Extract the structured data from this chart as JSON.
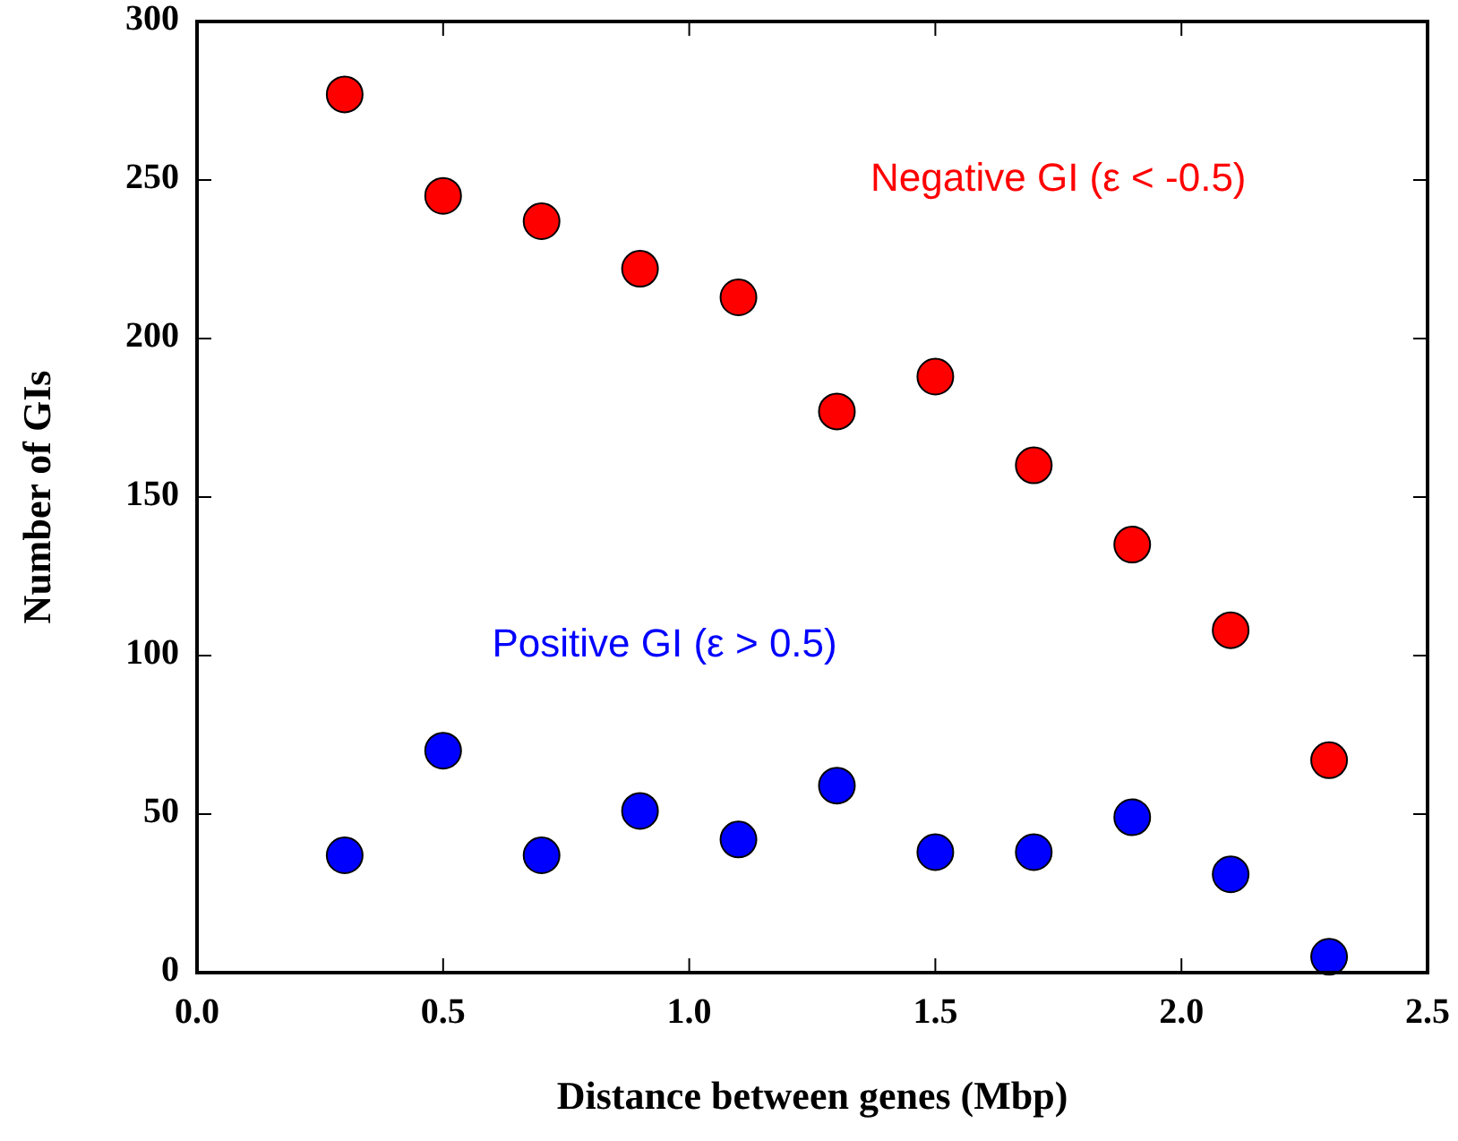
{
  "chart_data": {
    "type": "scatter",
    "xlabel": "Distance between genes (Mbp)",
    "ylabel": "Number of GIs",
    "x": [
      0.3,
      0.5,
      0.7,
      0.9,
      1.1,
      1.3,
      1.5,
      1.7,
      1.9,
      2.1,
      2.3
    ],
    "series": [
      {
        "name": "Negative GI (ε < -0.5)",
        "color": "#ff0000",
        "values": [
          277,
          245,
          237,
          222,
          213,
          177,
          188,
          160,
          135,
          108,
          67
        ]
      },
      {
        "name": "Positive GI (ε > 0.5)",
        "color": "#0000ff",
        "values": [
          37,
          70,
          37,
          51,
          42,
          59,
          38,
          38,
          49,
          31,
          5
        ]
      }
    ],
    "xlim": [
      0,
      2.5
    ],
    "xticks": [
      {
        "value": 0,
        "label": "0.0"
      },
      0.5,
      {
        "value": 1,
        "label": "1.0"
      },
      1.5,
      {
        "value": 2,
        "label": "2.0"
      },
      2.5
    ],
    "ylim": [
      0,
      300
    ],
    "yticks": [
      0,
      50,
      100,
      150,
      200,
      250,
      300
    ],
    "marker": "circle",
    "grid": false,
    "legend": false
  }
}
